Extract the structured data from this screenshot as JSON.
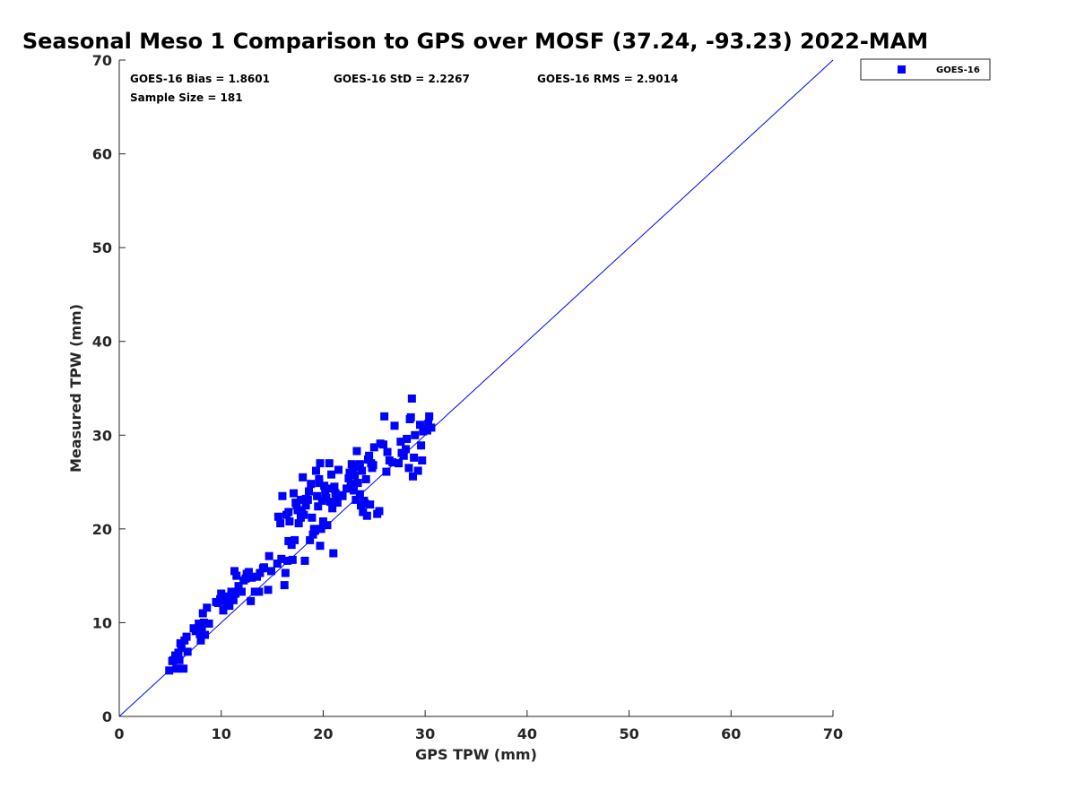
{
  "chart_data": {
    "type": "scatter",
    "title": "Seasonal Meso 1 Comparison to GPS over MOSF (37.24, -93.23) 2022-MAM",
    "xlabel": "GPS TPW (mm)",
    "ylabel": "Measured TPW (mm)",
    "xlim": [
      0,
      70
    ],
    "ylim": [
      0,
      70
    ],
    "x_ticks": [
      "0",
      "10",
      "20",
      "30",
      "40",
      "50",
      "60",
      "70"
    ],
    "y_ticks": [
      "0",
      "10",
      "20",
      "30",
      "40",
      "50",
      "60",
      "70"
    ],
    "grid": false,
    "legend_position": "outside-top-right",
    "reference_line": {
      "type": "one-to-one",
      "color": "#0000ff"
    },
    "stats": {
      "bias": "GOES-16 Bias = 1.8601",
      "std": "GOES-16 StD = 2.2267",
      "rms": "GOES-16 RMS = 2.9014",
      "sample": "Sample Size = 181"
    },
    "series": [
      {
        "name": "GOES-16",
        "color": "#0000ff",
        "marker": "square",
        "points": [
          [
            4.9,
            4.9
          ],
          [
            5.2,
            5.9
          ],
          [
            5.3,
            6.0
          ],
          [
            5.6,
            5.1
          ],
          [
            5.8,
            6.8
          ],
          [
            5.9,
            6.0
          ],
          [
            6.1,
            7.3
          ],
          [
            6.3,
            5.1
          ],
          [
            6.4,
            8.1
          ],
          [
            6.6,
            8.5
          ],
          [
            6.7,
            6.9
          ],
          [
            7.3,
            9.4
          ],
          [
            7.8,
            9.9
          ],
          [
            7.9,
            8.8
          ],
          [
            8.0,
            8.1
          ],
          [
            8.1,
            9.3
          ],
          [
            8.2,
            11.0
          ],
          [
            8.4,
            8.7
          ],
          [
            8.6,
            11.6
          ],
          [
            8.8,
            9.9
          ],
          [
            9.7,
            12.1
          ],
          [
            9.9,
            12.5
          ],
          [
            10.0,
            13.1
          ],
          [
            10.2,
            11.3
          ],
          [
            10.3,
            12.4
          ],
          [
            10.6,
            12.8
          ],
          [
            10.8,
            11.8
          ],
          [
            11.0,
            12.9
          ],
          [
            11.2,
            12.4
          ],
          [
            11.3,
            15.5
          ],
          [
            11.4,
            13.1
          ],
          [
            11.5,
            15.0
          ],
          [
            11.7,
            13.9
          ],
          [
            12.0,
            13.3
          ],
          [
            12.4,
            14.7
          ],
          [
            12.6,
            15.1
          ],
          [
            12.7,
            15.4
          ],
          [
            12.9,
            12.3
          ],
          [
            13.0,
            14.8
          ],
          [
            13.3,
            13.3
          ],
          [
            13.7,
            13.3
          ],
          [
            13.8,
            15.3
          ],
          [
            14.2,
            15.9
          ],
          [
            14.6,
            13.5
          ],
          [
            14.7,
            17.1
          ],
          [
            14.9,
            15.5
          ],
          [
            15.5,
            16.3
          ],
          [
            15.6,
            21.3
          ],
          [
            15.8,
            20.6
          ],
          [
            16.0,
            23.5
          ],
          [
            16.2,
            14.0
          ],
          [
            16.3,
            15.3
          ],
          [
            16.4,
            21.5
          ],
          [
            16.5,
            16.6
          ],
          [
            16.6,
            18.7
          ],
          [
            16.7,
            20.8
          ],
          [
            16.9,
            18.3
          ],
          [
            17.0,
            16.7
          ],
          [
            17.1,
            23.8
          ],
          [
            17.2,
            18.8
          ],
          [
            17.3,
            22.8
          ],
          [
            17.5,
            22.0
          ],
          [
            17.6,
            20.6
          ],
          [
            17.8,
            23.1
          ],
          [
            17.9,
            21.8
          ],
          [
            18.0,
            25.5
          ],
          [
            18.1,
            21.5
          ],
          [
            18.2,
            16.6
          ],
          [
            18.3,
            23.2
          ],
          [
            18.5,
            23.1
          ],
          [
            18.6,
            24.0
          ],
          [
            18.7,
            18.8
          ],
          [
            18.9,
            21.2
          ],
          [
            19.0,
            19.4
          ],
          [
            19.2,
            19.8
          ],
          [
            19.3,
            26.2
          ],
          [
            19.4,
            23.5
          ],
          [
            19.5,
            22.4
          ],
          [
            19.6,
            24.9
          ],
          [
            19.7,
            18.2
          ],
          [
            19.8,
            20.0
          ],
          [
            19.9,
            23.0
          ],
          [
            20.0,
            20.8
          ],
          [
            20.1,
            24.6
          ],
          [
            20.3,
            23.3
          ],
          [
            20.4,
            20.4
          ],
          [
            20.5,
            24.3
          ],
          [
            20.6,
            27.0
          ],
          [
            20.7,
            22.9
          ],
          [
            20.9,
            22.2
          ],
          [
            21.0,
            17.4
          ],
          [
            21.1,
            24.5
          ],
          [
            21.2,
            23.8
          ],
          [
            21.3,
            23.0
          ],
          [
            21.5,
            26.3
          ],
          [
            21.7,
            23.6
          ],
          [
            19.7,
            27.0
          ],
          [
            19.6,
            25.3
          ],
          [
            22.5,
            25.4
          ],
          [
            22.6,
            26.0
          ],
          [
            22.7,
            24.8
          ],
          [
            22.9,
            26.5
          ],
          [
            23.0,
            26.7
          ],
          [
            23.1,
            25.7
          ],
          [
            23.2,
            23.1
          ],
          [
            23.3,
            28.3
          ],
          [
            23.4,
            24.9
          ],
          [
            23.5,
            26.6
          ],
          [
            23.6,
            23.7
          ],
          [
            23.7,
            22.5
          ],
          [
            23.8,
            26.2
          ],
          [
            23.9,
            21.8
          ],
          [
            24.0,
            23.0
          ],
          [
            24.1,
            22.7
          ],
          [
            24.2,
            25.3
          ],
          [
            24.3,
            21.4
          ],
          [
            24.4,
            27.4
          ],
          [
            24.5,
            27.8
          ],
          [
            24.6,
            22.6
          ],
          [
            24.7,
            27.0
          ],
          [
            24.8,
            26.5
          ],
          [
            25.0,
            28.7
          ],
          [
            25.3,
            21.6
          ],
          [
            25.5,
            21.9
          ],
          [
            25.6,
            29.1
          ],
          [
            26.0,
            32.0
          ],
          [
            26.2,
            26.1
          ],
          [
            26.5,
            27.3
          ],
          [
            26.8,
            27.1
          ],
          [
            27.0,
            31.0
          ],
          [
            27.4,
            27.0
          ],
          [
            27.6,
            29.3
          ],
          [
            27.9,
            27.8
          ],
          [
            28.1,
            28.5
          ],
          [
            28.4,
            26.5
          ],
          [
            28.5,
            31.7
          ],
          [
            28.6,
            31.9
          ],
          [
            28.7,
            33.9
          ],
          [
            28.8,
            25.6
          ],
          [
            28.9,
            27.6
          ],
          [
            29.0,
            30.0
          ],
          [
            29.3,
            26.2
          ],
          [
            29.6,
            28.9
          ],
          [
            29.7,
            27.3
          ],
          [
            29.8,
            30.4
          ],
          [
            30.2,
            30.5
          ],
          [
            30.3,
            31.2
          ],
          [
            30.4,
            32.0
          ],
          [
            30.6,
            30.8
          ],
          [
            23.0,
            24.1
          ],
          [
            22.8,
            26.9
          ],
          [
            21.9,
            23.5
          ],
          [
            18.3,
            22.5
          ],
          [
            17.8,
            21.2
          ],
          [
            16.6,
            21.8
          ],
          [
            14.1,
            15.8
          ],
          [
            12.2,
            14.5
          ],
          [
            9.5,
            12.2
          ],
          [
            7.5,
            9.1
          ],
          [
            5.5,
            6.5
          ],
          [
            6.0,
            7.8
          ],
          [
            11.0,
            13.3
          ],
          [
            13.5,
            14.9
          ],
          [
            15.9,
            16.8
          ],
          [
            19.1,
            20.0
          ],
          [
            20.2,
            23.8
          ],
          [
            22.3,
            24.3
          ],
          [
            24.9,
            26.8
          ],
          [
            26.3,
            28.2
          ],
          [
            27.7,
            28.1
          ],
          [
            29.5,
            31.1
          ],
          [
            10.5,
            12.0
          ],
          [
            8.3,
            10.0
          ],
          [
            12.5,
            15.2
          ],
          [
            17.4,
            22.5
          ],
          [
            21.4,
            22.8
          ],
          [
            23.6,
            26.9
          ],
          [
            25.9,
            29.0
          ],
          [
            28.2,
            29.6
          ],
          [
            18.8,
            24.8
          ],
          [
            20.8,
            25.8
          ]
        ]
      }
    ]
  }
}
